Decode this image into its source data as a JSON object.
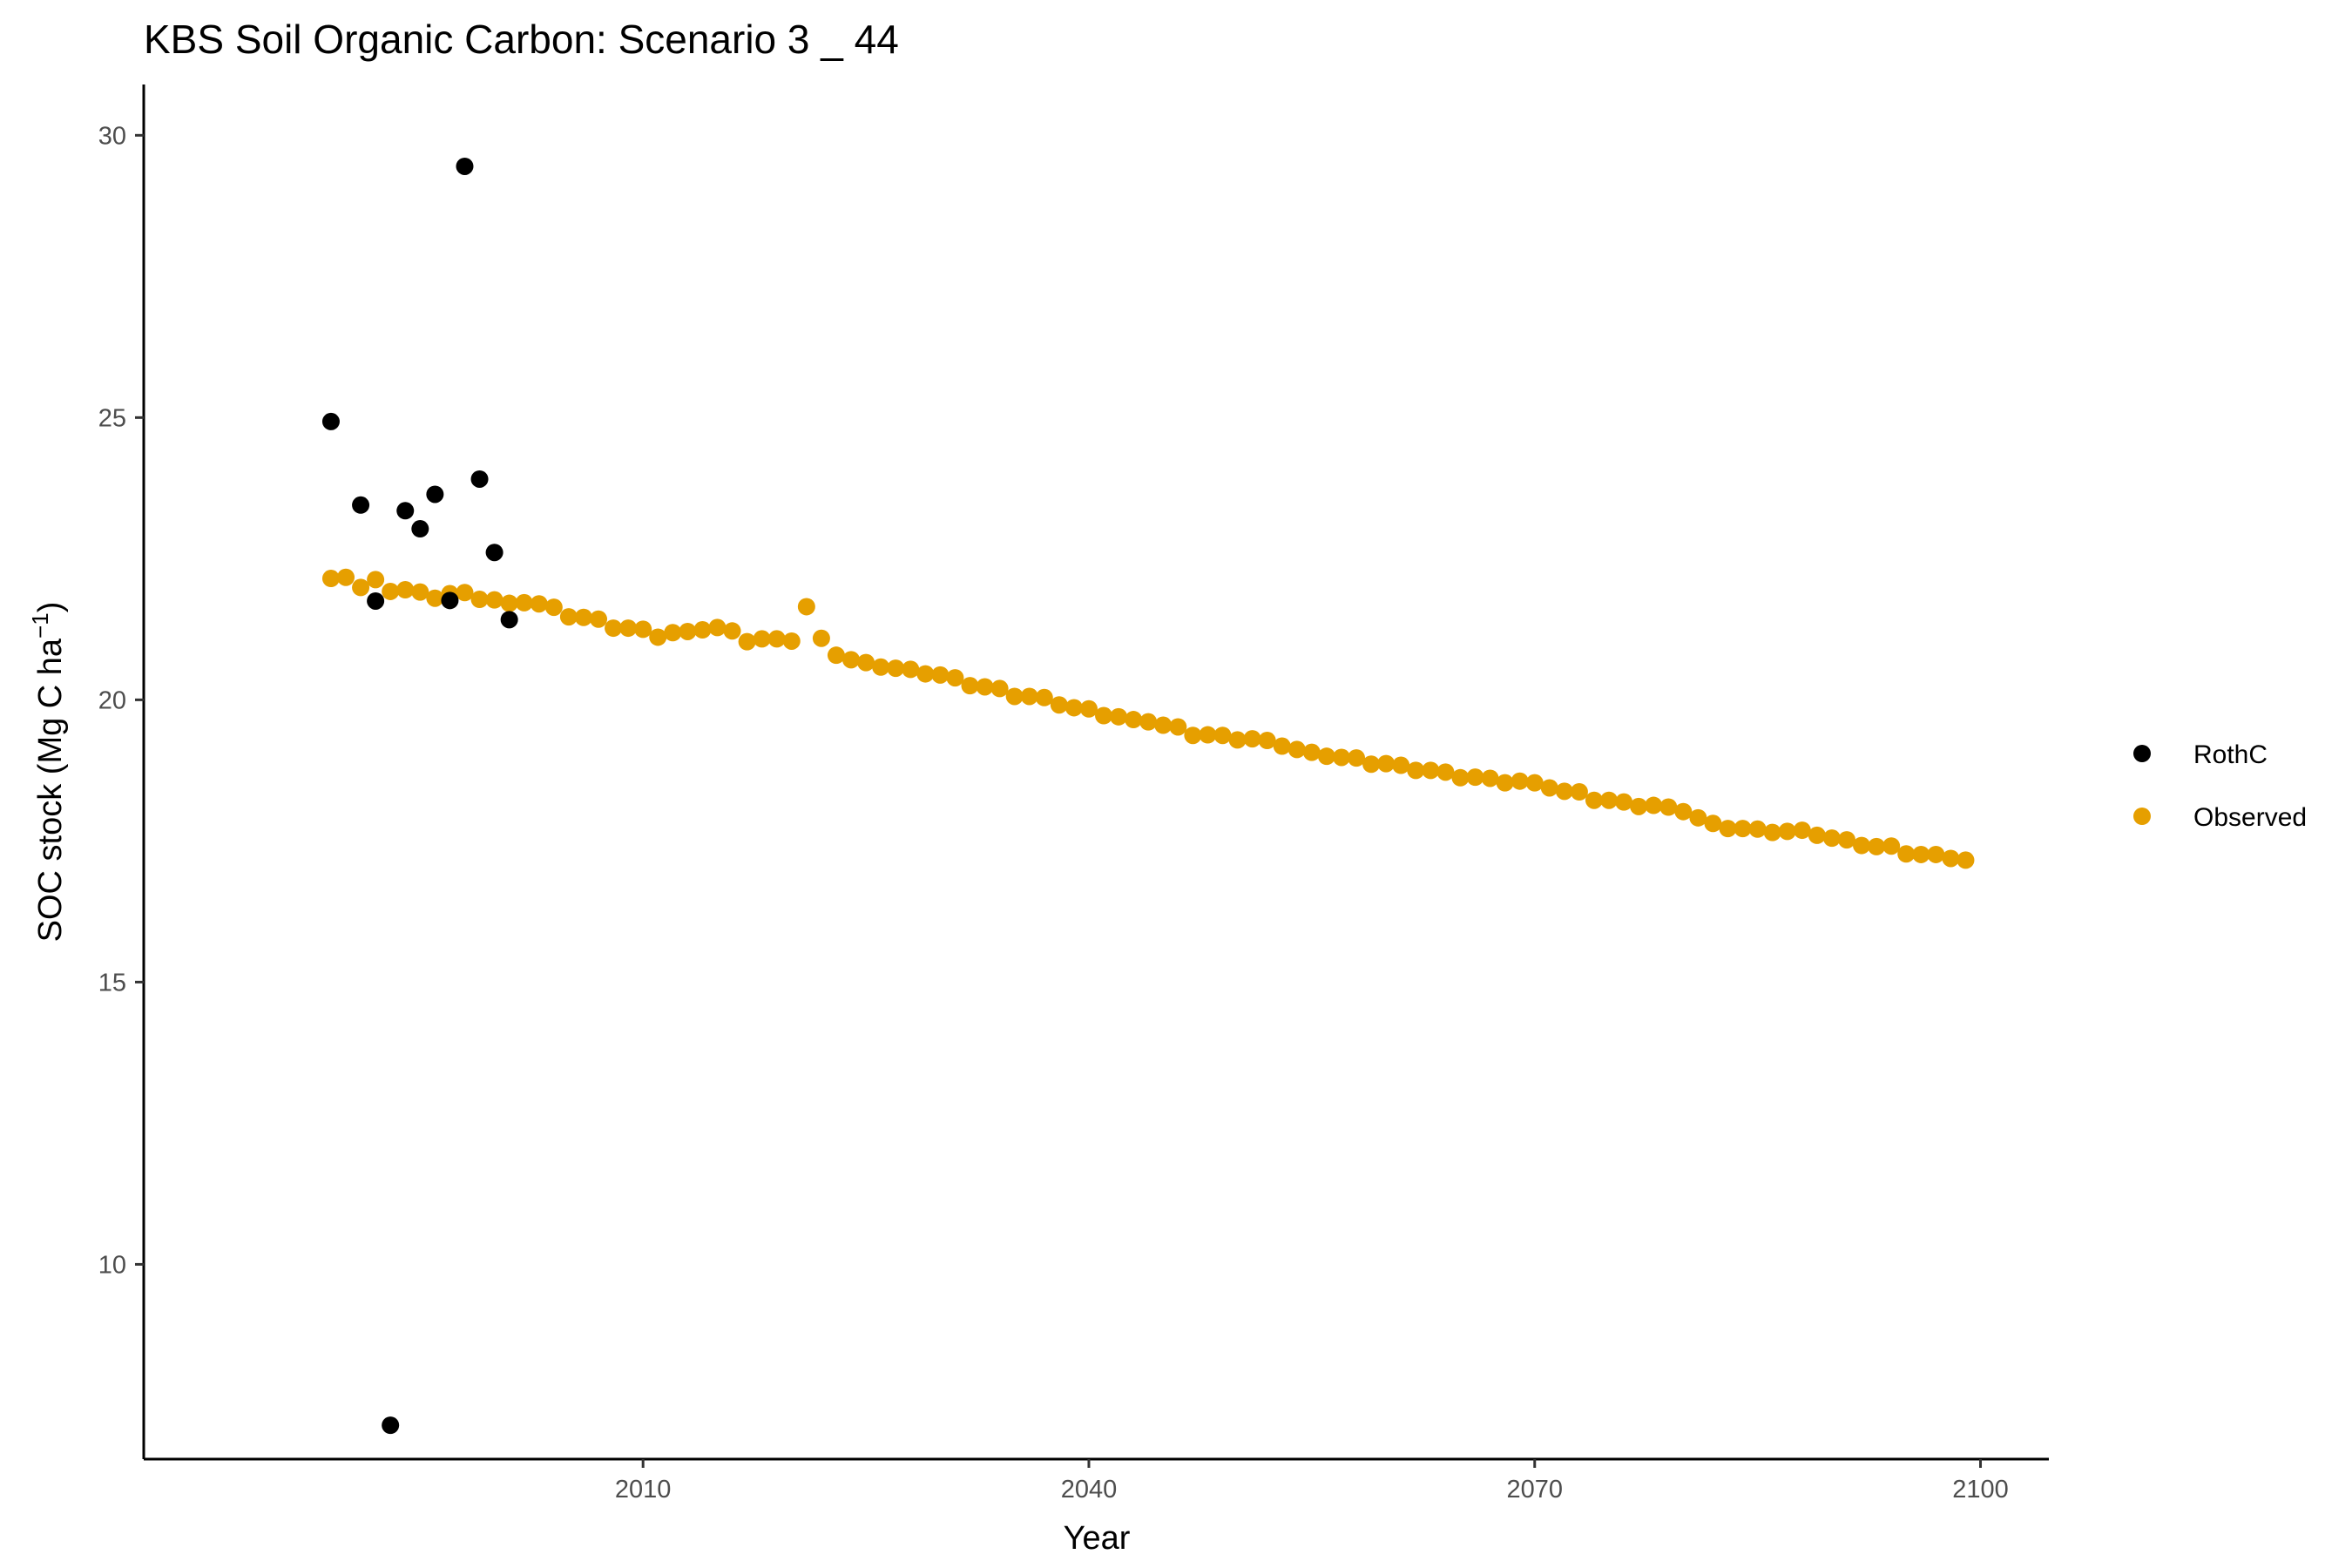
{
  "chart_data": {
    "type": "scatter",
    "title": "KBS Soil Organic Carbon: Scenario  3 _ 44",
    "xlabel": "Year",
    "ylabel_main": "SOC stock (Mg C ha",
    "ylabel_sup": "−1",
    "ylabel_close": ")",
    "xlim": [
      1976.4,
      2104.6
    ],
    "ylim": [
      6.55,
      30.9
    ],
    "x_ticks": [
      {
        "value": 2010,
        "label": "2010"
      },
      {
        "value": 2040,
        "label": "2040"
      },
      {
        "value": 2070,
        "label": "2070"
      },
      {
        "value": 2100,
        "label": "2100"
      }
    ],
    "y_ticks": [
      {
        "value": 10,
        "label": "10"
      },
      {
        "value": 15,
        "label": "15"
      },
      {
        "value": 20,
        "label": "20"
      },
      {
        "value": 25,
        "label": "25"
      },
      {
        "value": 30,
        "label": "30"
      }
    ],
    "grid": false,
    "legend_position": "right",
    "series": [
      {
        "name": "RothC",
        "color": "#000000",
        "x": [
          1989,
          1991,
          1992,
          1993,
          1994,
          1995,
          1996,
          1997,
          1998,
          1999,
          2000,
          2001
        ],
        "y": [
          24.93,
          23.45,
          21.75,
          7.15,
          23.35,
          23.03,
          23.64,
          21.76,
          29.45,
          23.91,
          22.61,
          21.42
        ]
      },
      {
        "name": "Observed",
        "color": "#e69f00",
        "x": [
          1989,
          1990,
          1991,
          1992,
          1993,
          1994,
          1995,
          1996,
          1997,
          1998,
          1999,
          2000,
          2001,
          2002,
          2003,
          2004,
          2005,
          2006,
          2007,
          2008,
          2009,
          2010,
          2011,
          2012,
          2013,
          2014,
          2015,
          2016,
          2017,
          2018,
          2019,
          2020,
          2021,
          2022,
          2023,
          2024,
          2025,
          2026,
          2027,
          2028,
          2029,
          2030,
          2031,
          2032,
          2033,
          2034,
          2035,
          2036,
          2037,
          2038,
          2039,
          2040,
          2041,
          2042,
          2043,
          2044,
          2045,
          2046,
          2047,
          2048,
          2049,
          2050,
          2051,
          2052,
          2053,
          2054,
          2055,
          2056,
          2057,
          2058,
          2059,
          2060,
          2061,
          2062,
          2063,
          2064,
          2065,
          2066,
          2067,
          2068,
          2069,
          2070,
          2071,
          2072,
          2073,
          2074,
          2075,
          2076,
          2077,
          2078,
          2079,
          2080,
          2081,
          2082,
          2083,
          2084,
          2085,
          2086,
          2087,
          2088,
          2089,
          2090,
          2091,
          2092,
          2093,
          2094,
          2095,
          2096,
          2097,
          2098,
          2099
        ],
        "y": [
          22.15,
          22.17,
          21.99,
          22.13,
          21.92,
          21.95,
          21.91,
          21.8,
          21.88,
          21.9,
          21.78,
          21.77,
          21.71,
          21.72,
          21.7,
          21.64,
          21.47,
          21.46,
          21.43,
          21.27,
          21.27,
          21.25,
          21.11,
          21.19,
          21.21,
          21.24,
          21.28,
          21.22,
          21.03,
          21.08,
          21.08,
          21.04,
          21.65,
          21.09,
          20.79,
          20.71,
          20.66,
          20.58,
          20.56,
          20.54,
          20.46,
          20.44,
          20.39,
          20.25,
          20.23,
          20.2,
          20.06,
          20.06,
          20.04,
          19.91,
          19.86,
          19.84,
          19.72,
          19.7,
          19.65,
          19.61,
          19.55,
          19.52,
          19.37,
          19.38,
          19.37,
          19.29,
          19.31,
          19.28,
          19.18,
          19.12,
          19.07,
          19.0,
          18.98,
          18.97,
          18.86,
          18.87,
          18.84,
          18.75,
          18.75,
          18.72,
          18.62,
          18.63,
          18.61,
          18.53,
          18.56,
          18.53,
          18.44,
          18.38,
          18.37,
          18.22,
          18.22,
          18.19,
          18.11,
          18.13,
          18.1,
          18.02,
          17.91,
          17.81,
          17.72,
          17.72,
          17.71,
          17.65,
          17.67,
          17.69,
          17.6,
          17.55,
          17.52,
          17.42,
          17.4,
          17.41,
          17.27,
          17.26,
          17.26,
          17.19,
          17.16
        ]
      }
    ]
  }
}
